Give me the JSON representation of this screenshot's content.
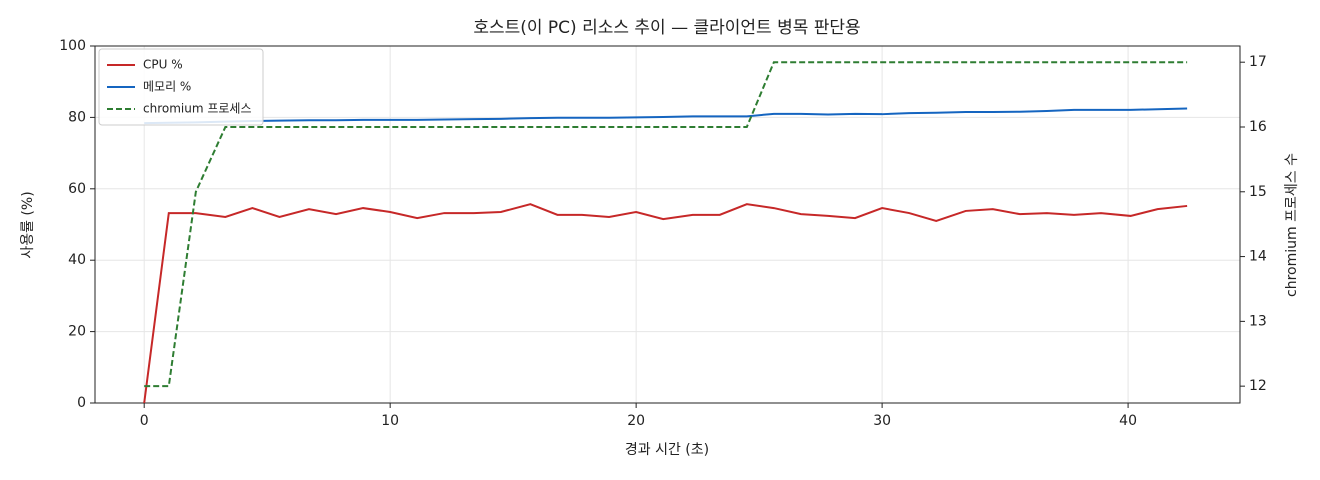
{
  "chart_data": {
    "type": "line",
    "title": "호스트(이 PC) 리소스 추이 — 클라이언트 병목 판단용",
    "xlabel": "경과 시간 (초)",
    "ylabel": "사용률 (%)",
    "y2label": "chromium 프로세스 수",
    "x": [
      0,
      1.0,
      2.1,
      3.3,
      4.4,
      5.5,
      6.7,
      7.8,
      8.9,
      10.0,
      11.1,
      12.2,
      13.4,
      14.5,
      15.7,
      16.8,
      17.8,
      18.9,
      20.0,
      21.1,
      22.3,
      23.4,
      24.5,
      25.6,
      26.7,
      27.8,
      28.9,
      30.0,
      31.1,
      32.2,
      33.4,
      34.5,
      35.6,
      36.7,
      37.8,
      38.9,
      40.1,
      41.2,
      42.4
    ],
    "series": [
      {
        "name": "CPU %",
        "color": "#c62828",
        "values": [
          0,
          53.2,
          53.2,
          52.1,
          54.6,
          52.1,
          54.3,
          52.9,
          54.6,
          53.5,
          51.8,
          53.2,
          53.2,
          53.5,
          55.7,
          52.7,
          52.7,
          52.1,
          53.5,
          51.5,
          52.7,
          52.7,
          55.7,
          54.6,
          52.9,
          52.4,
          51.8,
          54.6,
          53.2,
          51.0,
          53.8,
          54.3,
          52.9,
          53.2,
          52.7,
          53.2,
          52.4,
          54.3,
          55.2
        ]
      },
      {
        "name": "메모리 %",
        "color": "#1565c0",
        "values": [
          78.4,
          78.5,
          78.6,
          78.8,
          79.0,
          79.1,
          79.2,
          79.2,
          79.3,
          79.3,
          79.3,
          79.4,
          79.5,
          79.6,
          79.8,
          79.9,
          79.9,
          79.9,
          80.0,
          80.1,
          80.3,
          80.3,
          80.3,
          81.0,
          81.0,
          80.8,
          81.0,
          80.9,
          81.2,
          81.3,
          81.5,
          81.5,
          81.6,
          81.8,
          82.1,
          82.1,
          82.1,
          82.3,
          82.5
        ]
      },
      {
        "name": "chromium 프로세스",
        "color": "#2e7d32",
        "dashed": true,
        "axis": "y2",
        "values": [
          12,
          12,
          15,
          16,
          16,
          16,
          16,
          16,
          16,
          16,
          16,
          16,
          16,
          16,
          16,
          16,
          16,
          16,
          16,
          16,
          16,
          16,
          16,
          17,
          17,
          17,
          17,
          17,
          17,
          17,
          17,
          17,
          17,
          17,
          17,
          17,
          17,
          17,
          17
        ]
      }
    ],
    "xlim": [
      -2.0,
      44.55
    ],
    "xticks": [
      0,
      10,
      20,
      30,
      40
    ],
    "ylim": [
      0,
      100
    ],
    "yticks": [
      0,
      20,
      40,
      60,
      80,
      100
    ],
    "y2lim": [
      11.74,
      17.25
    ],
    "y2ticks": [
      12,
      13,
      14,
      15,
      16,
      17
    ],
    "grid": true,
    "legend": "upper left"
  }
}
